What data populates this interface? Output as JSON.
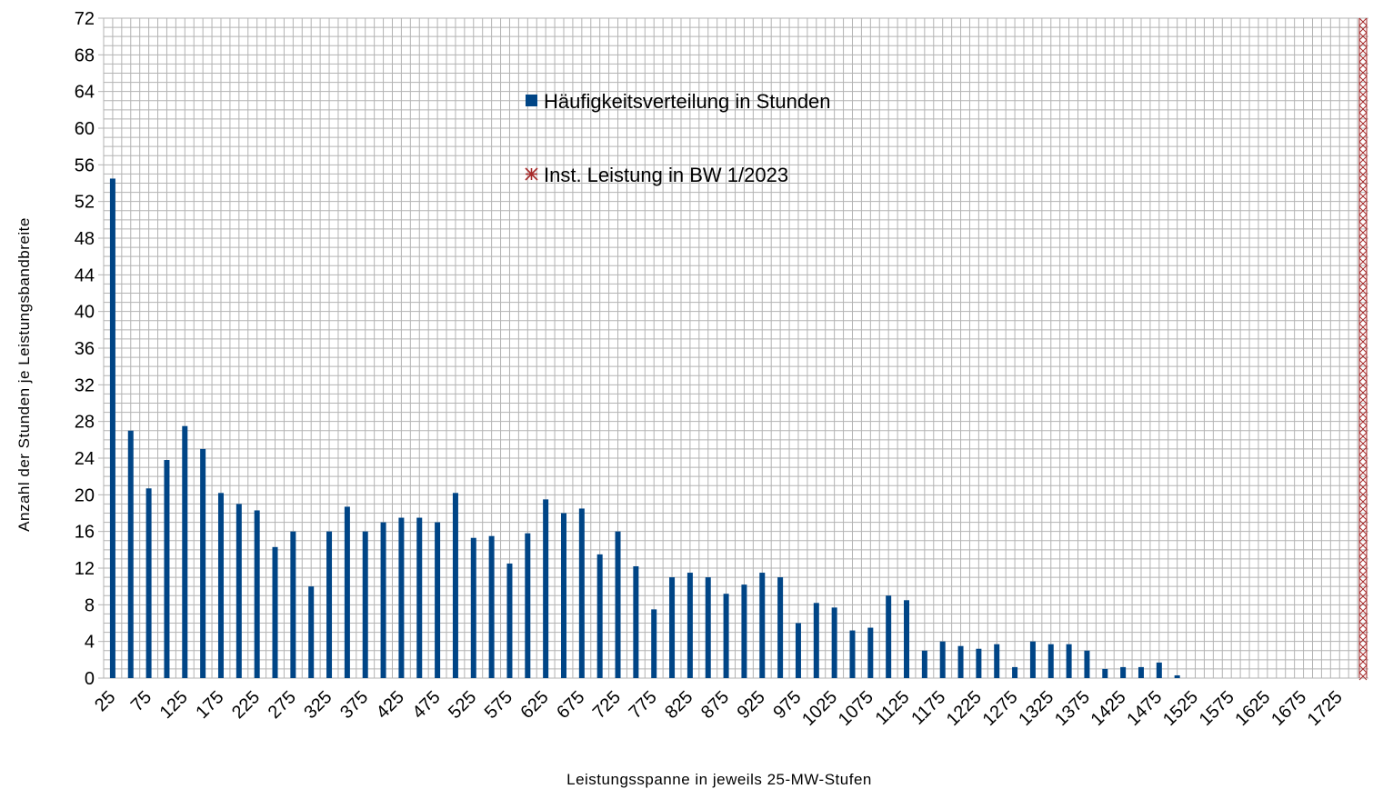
{
  "chart_data": {
    "type": "bar",
    "xlabel": "Leistungsspanne in jeweils 25-MW-Stufen",
    "ylabel": "Anzahl der Stunden je Leistungsbandbreite",
    "ylim": [
      0,
      72
    ],
    "y_ticks": [
      0,
      4,
      8,
      12,
      16,
      20,
      24,
      28,
      32,
      36,
      40,
      44,
      48,
      52,
      56,
      60,
      64,
      68,
      72
    ],
    "grid": true,
    "legend_placement": "top-center",
    "category_step": 25,
    "categories": [
      25,
      50,
      75,
      100,
      125,
      150,
      175,
      200,
      225,
      250,
      275,
      300,
      325,
      350,
      375,
      400,
      425,
      450,
      475,
      500,
      525,
      550,
      575,
      600,
      625,
      650,
      675,
      700,
      725,
      750,
      775,
      800,
      825,
      850,
      875,
      900,
      925,
      950,
      975,
      1000,
      1025,
      1050,
      1075,
      1100,
      1125,
      1150,
      1175,
      1200,
      1225,
      1250,
      1275,
      1300,
      1325,
      1350,
      1375,
      1400,
      1425,
      1450,
      1475,
      1500,
      1525,
      1550,
      1575,
      1600,
      1625,
      1650,
      1675,
      1700,
      1725,
      1750
    ],
    "tick_labels": [
      "25",
      "75",
      "125",
      "175",
      "225",
      "275",
      "325",
      "375",
      "425",
      "475",
      "525",
      "575",
      "625",
      "675",
      "725",
      "775",
      "825",
      "875",
      "925",
      "975",
      "1025",
      "1075",
      "1125",
      "1175",
      "1225",
      "1275",
      "1325",
      "1375",
      "1425",
      "1475",
      "1525",
      "1575",
      "1625",
      "1675",
      "1725"
    ],
    "series": [
      {
        "name": "Häufigkeitsverteilung in Stunden",
        "type": "bar",
        "color": "#004586",
        "values": [
          54.5,
          27,
          20.7,
          23.8,
          27.5,
          25,
          20.2,
          19,
          18.3,
          14.3,
          16,
          10,
          16,
          18.7,
          16,
          17,
          17.5,
          17.5,
          17,
          20.2,
          15.3,
          15.5,
          12.5,
          15.8,
          19.5,
          18,
          18.5,
          13.5,
          16,
          12.2,
          7.5,
          11,
          11.5,
          11,
          9.2,
          10.2,
          11.5,
          11,
          6,
          8.2,
          7.7,
          5.2,
          5.5,
          9,
          8.5,
          3,
          4,
          3.5,
          3.2,
          3.7,
          1.2,
          4,
          3.7,
          3.7,
          3,
          1,
          1.2,
          1.2,
          1.7,
          0.3,
          0,
          0,
          0,
          0,
          0,
          0,
          0,
          0,
          0,
          0
        ]
      },
      {
        "name": "Inst. Leistung in BW 1/2023",
        "type": "marker-line",
        "color": "#a52a2a",
        "x": 1765
      }
    ]
  }
}
